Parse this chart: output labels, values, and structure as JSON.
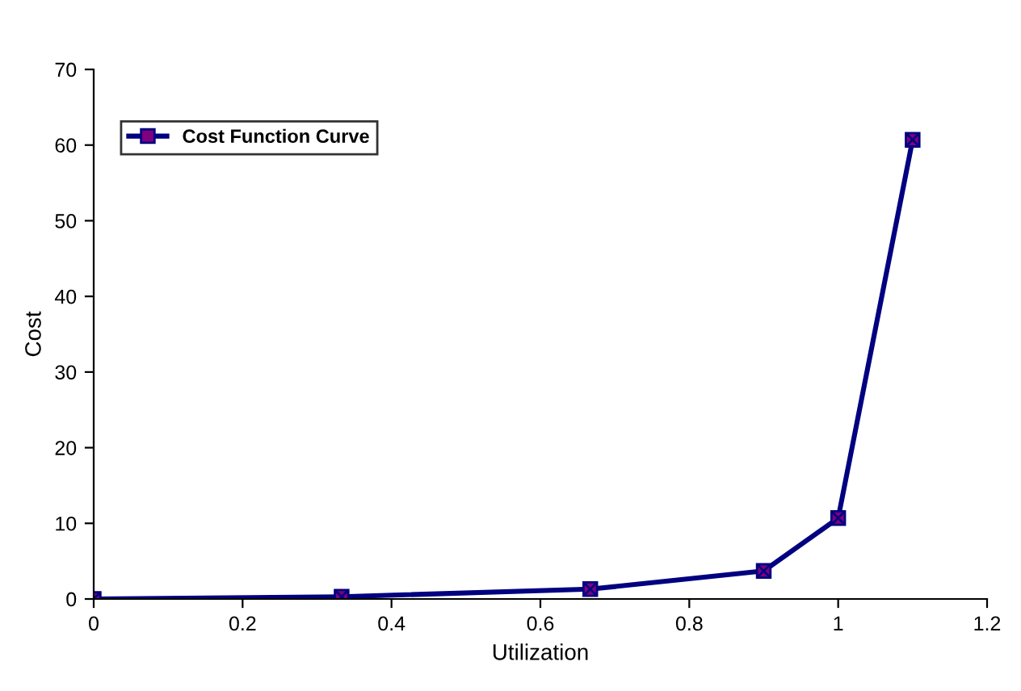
{
  "chart_data": {
    "type": "line",
    "xlabel": "Utilization",
    "ylabel": "Cost",
    "x": [
      0,
      0.333,
      0.667,
      0.9,
      1,
      1.1
    ],
    "series": [
      {
        "name": "Cost Function Curve",
        "color": "#000080",
        "values": [
          0,
          0.3,
          1.3,
          3.7,
          10.7,
          60.7
        ]
      }
    ],
    "xlim": [
      0,
      1.2
    ],
    "xticks": [
      0,
      0.2,
      0.4,
      0.6,
      0.8,
      1,
      1.2
    ],
    "ylim": [
      0,
      70
    ],
    "yticks": [
      0,
      10,
      20,
      30,
      40,
      50,
      60,
      70
    ],
    "grid": false,
    "legend": "top left",
    "marker": "square",
    "line_style": "solid"
  }
}
